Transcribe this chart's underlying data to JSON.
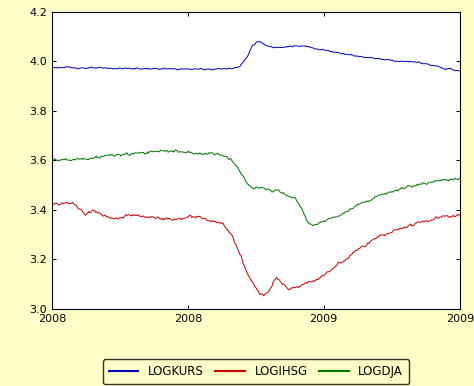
{
  "background_color": "#FFFFC8",
  "plot_bg_color": "#FFFFFF",
  "ylim": [
    3.0,
    4.2
  ],
  "yticks": [
    3.0,
    3.2,
    3.4,
    3.6,
    3.8,
    4.0,
    4.2
  ],
  "xtick_labels": [
    "2008",
    "2008",
    "2009",
    "2009"
  ],
  "xtick_positions": [
    0.0,
    0.333,
    0.666,
    1.0
  ],
  "n_points": 500,
  "logkurs_color": "#0000BB",
  "logihsg_color": "#CC0000",
  "logdja_color": "#007700",
  "legend_labels": [
    "LOGKURS",
    "LOGIHSG",
    "LOGDJA"
  ],
  "figsize": [
    4.74,
    3.86
  ],
  "dpi": 100,
  "linewidth": 0.7
}
